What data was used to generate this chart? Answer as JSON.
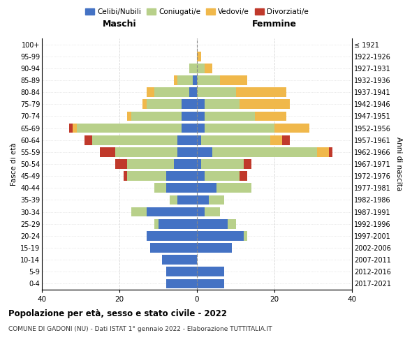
{
  "age_groups": [
    "0-4",
    "5-9",
    "10-14",
    "15-19",
    "20-24",
    "25-29",
    "30-34",
    "35-39",
    "40-44",
    "45-49",
    "50-54",
    "55-59",
    "60-64",
    "65-69",
    "70-74",
    "75-79",
    "80-84",
    "85-89",
    "90-94",
    "95-99",
    "100+"
  ],
  "birth_years": [
    "2017-2021",
    "2012-2016",
    "2007-2011",
    "2002-2006",
    "1997-2001",
    "1992-1996",
    "1987-1991",
    "1982-1986",
    "1977-1981",
    "1972-1976",
    "1967-1971",
    "1962-1966",
    "1957-1961",
    "1952-1956",
    "1947-1951",
    "1942-1946",
    "1937-1941",
    "1932-1936",
    "1927-1931",
    "1922-1926",
    "≤ 1921"
  ],
  "colors": {
    "celibi": "#4472c4",
    "coniugati": "#b8d08a",
    "vedovi": "#f0b84b",
    "divorziati": "#c0392b"
  },
  "males": {
    "celibi": [
      8,
      8,
      9,
      12,
      13,
      10,
      13,
      5,
      8,
      8,
      6,
      5,
      5,
      4,
      4,
      4,
      2,
      1,
      0,
      0,
      0
    ],
    "coniugati": [
      0,
      0,
      0,
      0,
      0,
      1,
      4,
      2,
      3,
      10,
      12,
      16,
      22,
      27,
      13,
      9,
      9,
      4,
      2,
      0,
      0
    ],
    "vedovi": [
      0,
      0,
      0,
      0,
      0,
      0,
      0,
      0,
      0,
      0,
      0,
      0,
      0,
      1,
      1,
      1,
      2,
      1,
      0,
      0,
      0
    ],
    "divorziati": [
      0,
      0,
      0,
      0,
      0,
      0,
      0,
      0,
      0,
      1,
      3,
      4,
      2,
      1,
      0,
      0,
      0,
      0,
      0,
      0,
      0
    ]
  },
  "females": {
    "nubili": [
      7,
      7,
      0,
      9,
      12,
      8,
      2,
      3,
      5,
      2,
      1,
      4,
      1,
      2,
      2,
      2,
      0,
      0,
      0,
      0,
      0
    ],
    "coniugate": [
      0,
      0,
      0,
      0,
      1,
      2,
      4,
      4,
      9,
      9,
      11,
      27,
      18,
      18,
      13,
      9,
      10,
      6,
      2,
      0,
      0
    ],
    "vedove": [
      0,
      0,
      0,
      0,
      0,
      0,
      0,
      0,
      0,
      0,
      0,
      3,
      3,
      9,
      8,
      13,
      13,
      7,
      2,
      1,
      0
    ],
    "divorziate": [
      0,
      0,
      0,
      0,
      0,
      0,
      0,
      0,
      0,
      2,
      2,
      1,
      2,
      0,
      0,
      0,
      0,
      0,
      0,
      0,
      0
    ]
  },
  "title": "Popolazione per età, sesso e stato civile - 2022",
  "subtitle": "COMUNE DI GADONI (NU) - Dati ISTAT 1° gennaio 2022 - Elaborazione TUTTITALIA.IT",
  "xlabel_left": "Maschi",
  "xlabel_right": "Femmine",
  "ylabel_left": "Fasce di età",
  "ylabel_right": "Anni di nascita",
  "xlim": 40,
  "legend_labels": [
    "Celibi/Nubili",
    "Coniugati/e",
    "Vedovi/e",
    "Divorziati/e"
  ]
}
